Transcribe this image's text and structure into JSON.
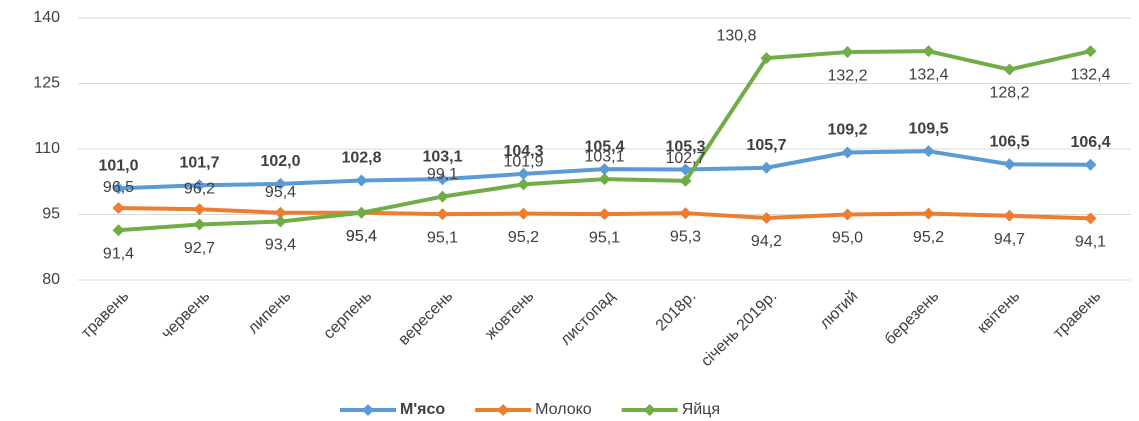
{
  "chart_data": {
    "type": "line",
    "categories": [
      "травень",
      "червень",
      "липень",
      "серпень",
      "вересень",
      "жовтень",
      "листопад",
      "2018р.",
      "січень 2019р.",
      "лютий",
      "березень",
      "квітень",
      "травень"
    ],
    "ylim": [
      80,
      140
    ],
    "yticks": [
      80,
      95,
      110,
      125,
      140
    ],
    "grid": true,
    "legend": "bottom",
    "series": [
      {
        "name": "М'ясо",
        "color": "#5b9bd5",
        "values": [
          101.0,
          101.7,
          102.0,
          102.8,
          103.1,
          104.3,
          105.4,
          105.3,
          105.7,
          109.2,
          109.5,
          106.5,
          106.4
        ],
        "value_labels": [
          "101,0",
          "101,7",
          "102,0",
          "102,8",
          "103,1",
          "104,3",
          "105,4",
          "105,3",
          "105,7",
          "109,2",
          "109,5",
          "106,5",
          "106,4"
        ]
      },
      {
        "name": "Молоко",
        "color": "#ed7d31",
        "values": [
          96.5,
          96.2,
          95.4,
          95.4,
          95.1,
          95.2,
          95.1,
          95.3,
          94.2,
          95.0,
          95.2,
          94.7,
          94.1
        ],
        "value_labels": [
          "96,5",
          "96,2",
          "95,4",
          "95,4",
          "95,1",
          "95,2",
          "95,1",
          "95,3",
          "94,2",
          "95,0",
          "95,2",
          "94,7",
          "94,1"
        ]
      },
      {
        "name": "Яйця",
        "color": "#70ad47",
        "values": [
          91.4,
          92.7,
          93.4,
          95.4,
          99.1,
          101.9,
          103.1,
          102.7,
          130.8,
          132.2,
          132.4,
          128.2,
          132.4
        ],
        "value_labels": [
          "91,4",
          "92,7",
          "93,4",
          "95,4",
          "99,1",
          "101,9",
          "103,1",
          "102,7",
          "130,8",
          "132,2",
          "132,4",
          "128,2",
          "132,4"
        ]
      }
    ]
  }
}
